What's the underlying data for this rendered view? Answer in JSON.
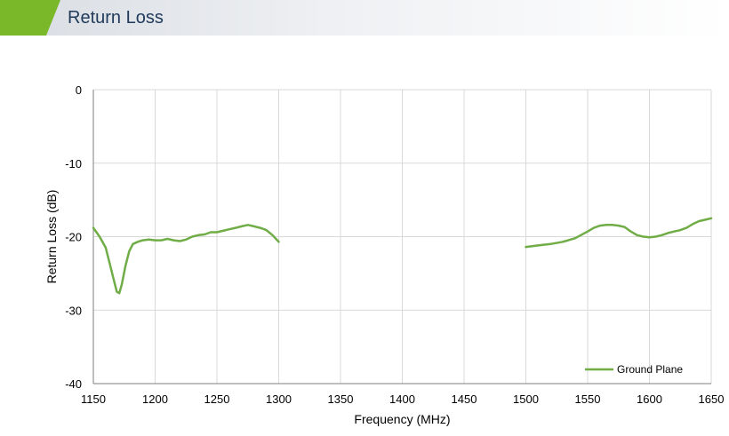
{
  "page": {
    "title": "Return Loss"
  },
  "chart_data": {
    "type": "line",
    "title": "",
    "xlabel": "Frequency (MHz)",
    "ylabel": "Return Loss (dB)",
    "xlim": [
      1150,
      1650
    ],
    "ylim": [
      -40,
      0
    ],
    "x_ticks": [
      1150,
      1200,
      1250,
      1300,
      1350,
      1400,
      1450,
      1500,
      1550,
      1600,
      1650
    ],
    "y_ticks": [
      0,
      -10,
      -20,
      -30,
      -40
    ],
    "grid": true,
    "legend": {
      "position": "bottom-right",
      "entries": [
        "Ground Plane"
      ]
    },
    "series": [
      {
        "name": "Ground Plane",
        "color": "#70ad47",
        "segments": [
          [
            [
              1150,
              -18.8
            ],
            [
              1155,
              -20.0
            ],
            [
              1160,
              -21.5
            ],
            [
              1163,
              -23.5
            ],
            [
              1166,
              -25.5
            ],
            [
              1169,
              -27.5
            ],
            [
              1171,
              -27.7
            ],
            [
              1173,
              -26.5
            ],
            [
              1176,
              -24.0
            ],
            [
              1179,
              -22.0
            ],
            [
              1182,
              -21.0
            ],
            [
              1186,
              -20.7
            ],
            [
              1190,
              -20.5
            ],
            [
              1195,
              -20.4
            ],
            [
              1200,
              -20.5
            ],
            [
              1205,
              -20.5
            ],
            [
              1210,
              -20.3
            ],
            [
              1215,
              -20.5
            ],
            [
              1220,
              -20.6
            ],
            [
              1225,
              -20.4
            ],
            [
              1230,
              -20.0
            ],
            [
              1235,
              -19.8
            ],
            [
              1240,
              -19.7
            ],
            [
              1245,
              -19.4
            ],
            [
              1250,
              -19.4
            ],
            [
              1255,
              -19.2
            ],
            [
              1260,
              -19.0
            ],
            [
              1265,
              -18.8
            ],
            [
              1270,
              -18.6
            ],
            [
              1275,
              -18.4
            ],
            [
              1280,
              -18.6
            ],
            [
              1285,
              -18.8
            ],
            [
              1290,
              -19.1
            ],
            [
              1295,
              -19.8
            ],
            [
              1300,
              -20.7
            ]
          ],
          [
            [
              1500,
              -21.4
            ],
            [
              1510,
              -21.2
            ],
            [
              1520,
              -21.0
            ],
            [
              1530,
              -20.7
            ],
            [
              1540,
              -20.2
            ],
            [
              1550,
              -19.3
            ],
            [
              1555,
              -18.8
            ],
            [
              1560,
              -18.5
            ],
            [
              1565,
              -18.4
            ],
            [
              1570,
              -18.4
            ],
            [
              1575,
              -18.5
            ],
            [
              1580,
              -18.7
            ],
            [
              1585,
              -19.3
            ],
            [
              1590,
              -19.8
            ],
            [
              1595,
              -20.0
            ],
            [
              1600,
              -20.1
            ],
            [
              1605,
              -20.0
            ],
            [
              1610,
              -19.8
            ],
            [
              1615,
              -19.5
            ],
            [
              1620,
              -19.3
            ],
            [
              1625,
              -19.1
            ],
            [
              1630,
              -18.8
            ],
            [
              1635,
              -18.3
            ],
            [
              1640,
              -17.9
            ],
            [
              1645,
              -17.7
            ],
            [
              1650,
              -17.5
            ]
          ]
        ]
      }
    ]
  }
}
